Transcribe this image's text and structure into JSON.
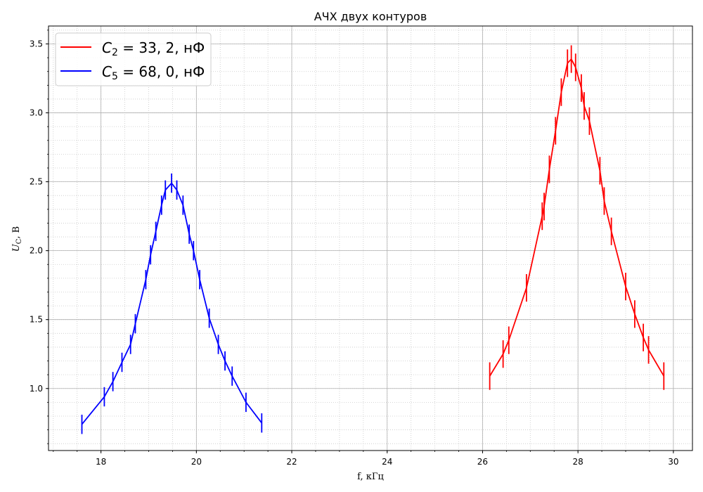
{
  "chart_data": {
    "type": "line",
    "title": "АЧХ двух контуров",
    "xlabel": "f, кГц",
    "ylabel_main": "U",
    "ylabel_sub": "C",
    "ylabel_rest": ", В",
    "xlim": [
      16.9,
      30.4
    ],
    "ylim": [
      0.55,
      3.63
    ],
    "xticks": [
      18,
      20,
      22,
      24,
      26,
      28,
      30
    ],
    "xtick_labels": [
      "18",
      "20",
      "22",
      "24",
      "26",
      "28",
      "30"
    ],
    "yticks": [
      1.0,
      1.5,
      2.0,
      2.5,
      3.0,
      3.5
    ],
    "ytick_labels": [
      "1.0",
      "1.5",
      "2.0",
      "2.5",
      "3.0",
      "3.5"
    ],
    "grid": true,
    "minor_grid": true,
    "legend_position": "top-left",
    "series": [
      {
        "name": "C2 = 33, 2, нФ",
        "legend_main": "C",
        "legend_sub": "2",
        "legend_rest": " = 33, 2, нФ",
        "color": "#ff0000",
        "x": [
          26.15,
          26.43,
          26.55,
          26.92,
          27.25,
          27.29,
          27.4,
          27.53,
          27.65,
          27.78,
          27.86,
          27.95,
          28.07,
          28.13,
          28.24,
          28.46,
          28.55,
          28.7,
          29.0,
          29.19,
          29.37,
          29.48,
          29.8
        ],
        "y": [
          1.09,
          1.25,
          1.35,
          1.73,
          2.25,
          2.32,
          2.59,
          2.87,
          3.15,
          3.36,
          3.39,
          3.33,
          3.18,
          3.05,
          2.94,
          2.58,
          2.36,
          2.14,
          1.74,
          1.54,
          1.37,
          1.28,
          1.09
        ],
        "err": [
          0.1,
          0.1,
          0.1,
          0.1,
          0.1,
          0.1,
          0.1,
          0.1,
          0.1,
          0.1,
          0.1,
          0.1,
          0.1,
          0.1,
          0.1,
          0.1,
          0.1,
          0.1,
          0.1,
          0.1,
          0.1,
          0.1,
          0.1
        ]
      },
      {
        "name": "C5 = 68, 0, нФ",
        "legend_main": "C",
        "legend_sub": "5",
        "legend_rest": " = 68, 0, нФ",
        "color": "#0000ff",
        "x": [
          17.6,
          18.07,
          18.25,
          18.44,
          18.62,
          18.72,
          18.94,
          19.04,
          19.15,
          19.27,
          19.35,
          19.48,
          19.59,
          19.72,
          19.85,
          19.94,
          20.07,
          20.27,
          20.46,
          20.6,
          20.75,
          21.04,
          21.37
        ],
        "y": [
          0.74,
          0.94,
          1.05,
          1.19,
          1.32,
          1.47,
          1.79,
          1.97,
          2.14,
          2.33,
          2.44,
          2.49,
          2.44,
          2.33,
          2.12,
          2.0,
          1.79,
          1.51,
          1.32,
          1.2,
          1.09,
          0.9,
          0.75
        ],
        "err": [
          0.07,
          0.07,
          0.07,
          0.07,
          0.07,
          0.07,
          0.07,
          0.07,
          0.07,
          0.07,
          0.07,
          0.07,
          0.07,
          0.07,
          0.07,
          0.07,
          0.07,
          0.07,
          0.07,
          0.07,
          0.07,
          0.07,
          0.07
        ]
      }
    ]
  },
  "colors": {
    "grid_major": "#b0b0b0",
    "grid_minor": "#c8c8c8",
    "axes": "#000000",
    "legend_border": "#cccccc"
  }
}
